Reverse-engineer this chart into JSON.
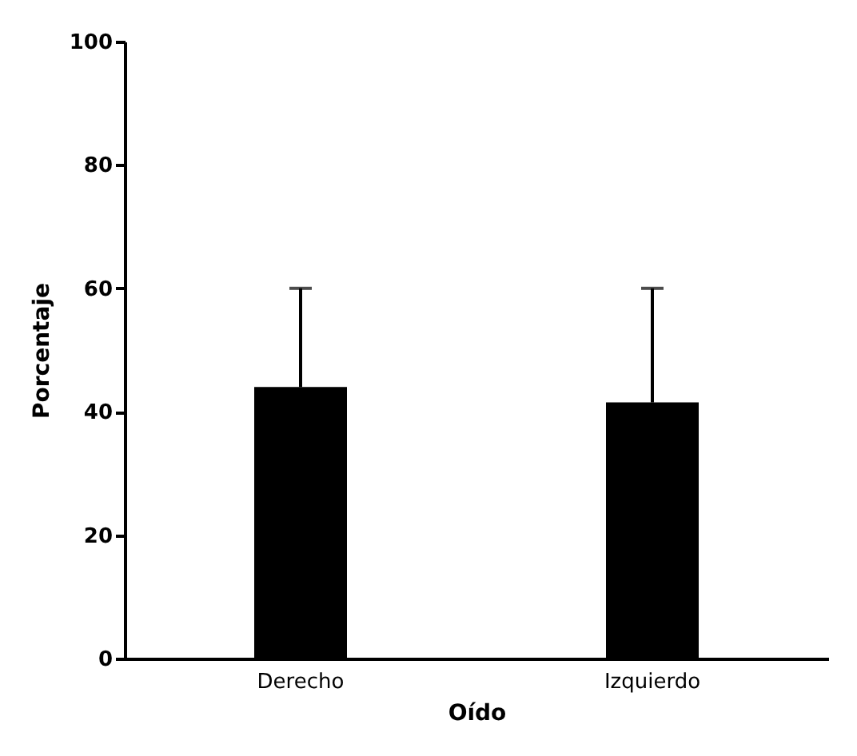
{
  "chart_data": {
    "type": "bar",
    "xlabel": "Oído",
    "ylabel": "Porcentaje",
    "categories": [
      "Derecho",
      "Izquierdo"
    ],
    "values": [
      44,
      41.5
    ],
    "errors": [
      [
        44,
        60
      ],
      [
        41.5,
        60
      ]
    ],
    "color": "#000000",
    "ylim": [
      0,
      100
    ],
    "yticks": [
      0,
      20,
      40,
      60,
      80,
      100
    ],
    "grid": false
  }
}
